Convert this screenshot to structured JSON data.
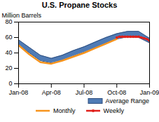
{
  "chart_data": {
    "type": "line",
    "title": "U.S. Propane Stocks",
    "y_label": "Million Barrels",
    "xlim": [
      0,
      12
    ],
    "xticks": [
      {
        "value": 0,
        "label": "Jan-08"
      },
      {
        "value": 3,
        "label": "Apr-08"
      },
      {
        "value": 6,
        "label": "Jul-08"
      },
      {
        "value": 9,
        "label": "Oct-08"
      },
      {
        "value": 12,
        "label": "Jan-09"
      }
    ],
    "ylim": [
      0,
      80
    ],
    "yticks": [
      0,
      20,
      40,
      60,
      80
    ],
    "grid": false,
    "legend": "bottom",
    "series": [
      {
        "name": "Average Range",
        "type": "area",
        "color": "#4f7bb5",
        "x": [
          0,
          1,
          2,
          3,
          4,
          5,
          6,
          7,
          8,
          9,
          10,
          11,
          12
        ],
        "lower": [
          50,
          40,
          30,
          27,
          30,
          36,
          41,
          46,
          52,
          58,
          61,
          60,
          53
        ],
        "upper": [
          57,
          47,
          37,
          33,
          37,
          43,
          48,
          54,
          60,
          65,
          68,
          68,
          59
        ]
      },
      {
        "name": "Monthly",
        "type": "line",
        "color": "#f7941d",
        "x": [
          0,
          1,
          2,
          3,
          4,
          5,
          6,
          7,
          8,
          9
        ],
        "values": [
          50,
          38,
          28,
          26,
          30,
          35,
          40,
          46,
          52,
          58
        ]
      },
      {
        "name": "Weekly",
        "type": "line",
        "color": "#e0201b",
        "marker": "circle",
        "x": [
          9,
          9.25,
          9.5,
          9.75,
          10,
          10.25,
          10.5,
          10.75,
          11,
          11.25,
          11.5,
          11.75,
          12
        ],
        "values": [
          60,
          61,
          61,
          61,
          61,
          61,
          61,
          61,
          61,
          60,
          59,
          58,
          56
        ]
      }
    ]
  }
}
